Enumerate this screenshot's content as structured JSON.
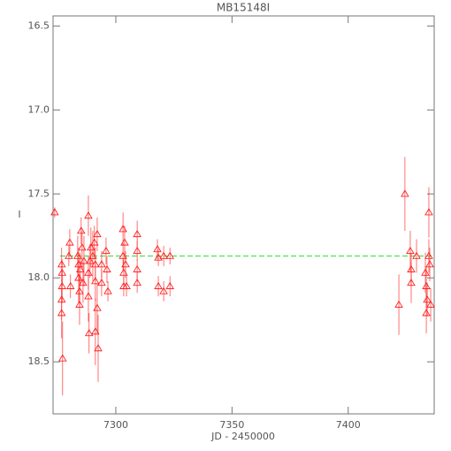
{
  "chart_data": {
    "type": "scatter",
    "title": "MB15148I",
    "x_label": "JD - 2450000",
    "y_label": "I",
    "xlim": [
      7273,
      7437
    ],
    "ylim": [
      16.44,
      18.81
    ],
    "invert_y": true,
    "xticks": [
      7300,
      7350,
      7400
    ],
    "yticks": [
      16.5,
      {
        "value": 17,
        "label": "17.0"
      },
      17.5,
      {
        "value": 18,
        "label": "18.0"
      },
      18.5
    ],
    "color": "#ff2020",
    "marker": "triangle",
    "reference_line": {
      "value": 17.87,
      "color": "#33dd33"
    },
    "x": [
      7273.7,
      7276.7,
      7276.7,
      7276.7,
      7276.9,
      7277.1,
      7276.9,
      7279.8,
      7280.2,
      7280.5,
      7283.6,
      7284.0,
      7284.0,
      7284.4,
      7284.4,
      7284.7,
      7285.1,
      7285.5,
      7285.9,
      7286.3,
      7288.2,
      7288.2,
      7288.2,
      7288.5,
      7288.9,
      7289.3,
      7290.1,
      7290.8,
      7291.2,
      7291.2,
      7291.2,
      7292.0,
      7292.0,
      7292.4,
      7293.9,
      7293.9,
      7295.8,
      7296.2,
      7296.6,
      7303.1,
      7303.1,
      7303.4,
      7303.4,
      7303.8,
      7304.2,
      7304.6,
      7309.2,
      7309.2,
      7309.2,
      7309.2,
      7317.9,
      7318.3,
      7318.3,
      7320.6,
      7320.6,
      7323.3,
      7323.3,
      7421.8,
      7424.4,
      7426.7,
      7427.1,
      7427.1,
      7429.4,
      7433.2,
      7433.6,
      7433.6,
      7434.0,
      7434.7,
      7434.7,
      7435.1,
      7435.5
    ],
    "values": [
      17.61,
      17.92,
      18.13,
      18.21,
      17.97,
      18.48,
      18.05,
      17.87,
      17.79,
      18.05,
      17.87,
      17.92,
      18.0,
      18.08,
      18.16,
      17.95,
      17.72,
      17.82,
      18.03,
      17.9,
      17.63,
      17.97,
      18.11,
      18.33,
      17.9,
      17.82,
      17.87,
      17.79,
      17.92,
      18.02,
      18.32,
      17.74,
      18.18,
      18.42,
      17.92,
      18.03,
      17.84,
      17.95,
      18.08,
      17.71,
      17.87,
      17.97,
      18.05,
      17.79,
      17.92,
      18.05,
      17.74,
      17.84,
      17.95,
      18.03,
      17.83,
      17.88,
      18.05,
      17.87,
      18.08,
      17.87,
      18.05,
      18.16,
      17.5,
      17.84,
      17.95,
      18.03,
      17.87,
      17.97,
      18.05,
      18.21,
      18.13,
      17.61,
      17.87,
      17.92,
      18.16
    ],
    "errors": [
      0.03,
      0.1,
      0.12,
      0.15,
      0.08,
      0.22,
      0.1,
      0.06,
      0.08,
      0.07,
      0.12,
      0.1,
      0.15,
      0.1,
      0.12,
      0.1,
      0.08,
      0.1,
      0.12,
      0.15,
      0.12,
      0.1,
      0.15,
      0.12,
      0.1,
      0.12,
      0.15,
      0.1,
      0.1,
      0.12,
      0.2,
      0.1,
      0.15,
      0.2,
      0.08,
      0.08,
      0.08,
      0.08,
      0.06,
      0.1,
      0.08,
      0.08,
      0.06,
      0.1,
      0.08,
      0.06,
      0.08,
      0.06,
      0.06,
      0.06,
      0.06,
      0.05,
      0.06,
      0.06,
      0.06,
      0.05,
      0.06,
      0.18,
      0.22,
      0.12,
      0.1,
      0.12,
      0.1,
      0.12,
      0.12,
      0.12,
      0.1,
      0.15,
      0.1,
      0.1,
      0.1
    ]
  }
}
